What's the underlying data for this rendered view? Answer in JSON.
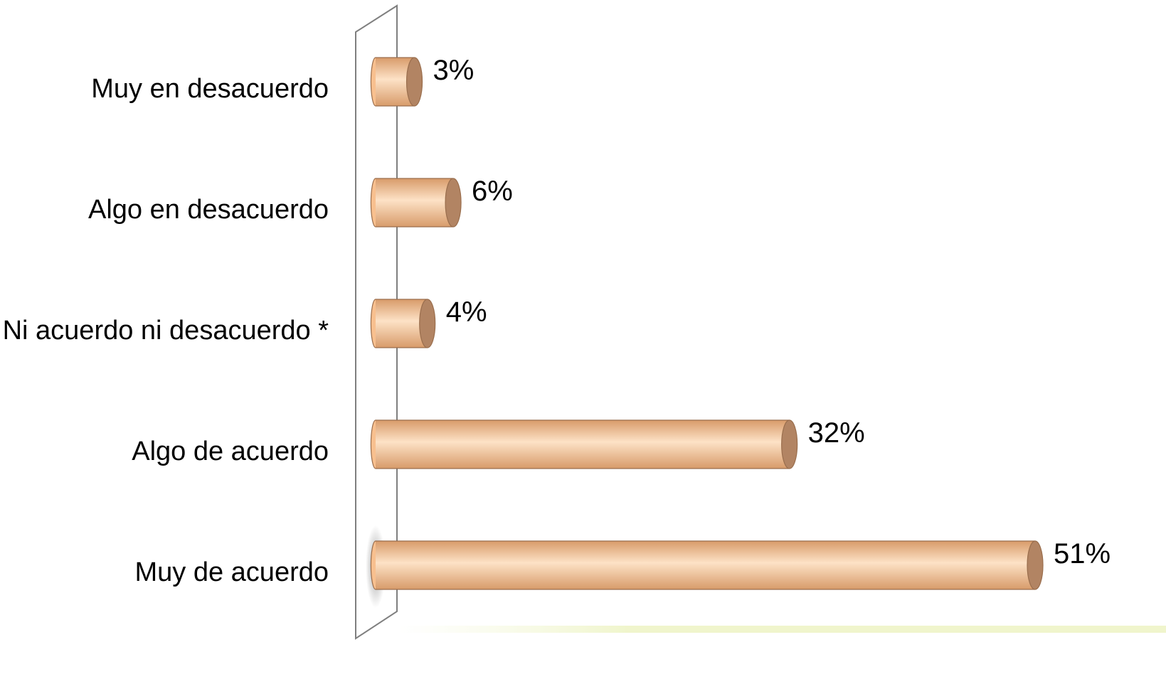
{
  "chart_data": {
    "type": "bar",
    "orientation": "horizontal",
    "style": "3d-cylinder",
    "categories": [
      "Muy en desacuerdo",
      "Algo en desacuerdo",
      "Ni acuerdo ni desacuerdo *",
      "Algo de acuerdo",
      "Muy de acuerdo"
    ],
    "values": [
      3,
      6,
      4,
      32,
      51
    ],
    "data_labels": [
      "3%",
      "6%",
      "4%",
      "32%",
      "51%"
    ],
    "unit": "%",
    "xlim": [
      0,
      51
    ],
    "title": "",
    "xlabel": "",
    "ylabel": "",
    "grid": false,
    "legend": "none",
    "colors": {
      "bar_body": "#f8c08f",
      "bar_highlight": "#fde2c6",
      "bar_shadow": "#d89b6a",
      "bar_cap": "#b28463",
      "bar_outline": "#9a6e4d",
      "axis_wall": "#7f7f7f"
    }
  }
}
